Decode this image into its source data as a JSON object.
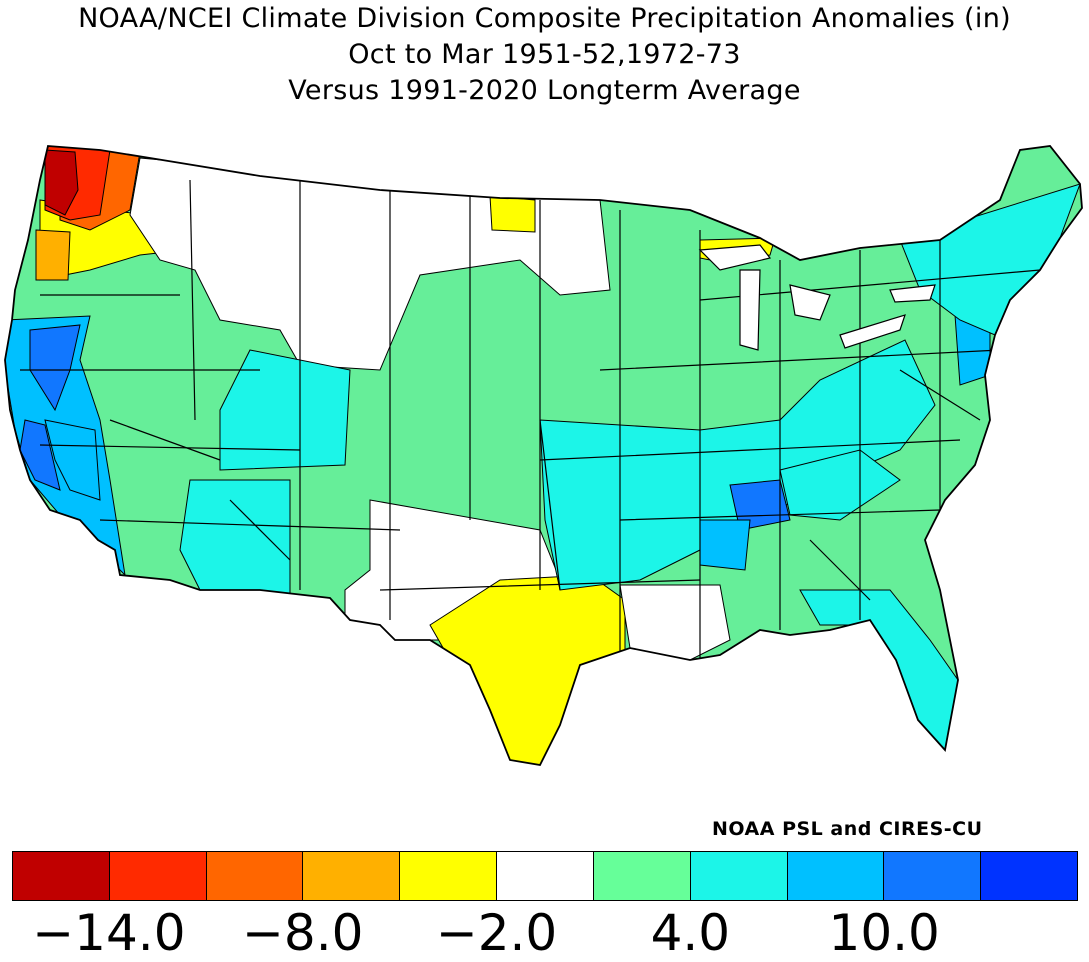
{
  "header": {
    "title_line1": "NOAA/NCEI Climate Division Composite Precipitation Anomalies (in)",
    "title_line2": "Oct to Mar  1951-52,1972-73",
    "title_line3": "Versus 1991-2020 Longterm Average"
  },
  "credit": "NOAA PSL and CIRES-CU",
  "legend": {
    "colors": [
      "#c00000",
      "#ff2a00",
      "#ff6600",
      "#ffb000",
      "#ffff00",
      "#ffffff",
      "#66ff99",
      "#1cf5e8",
      "#00c0ff",
      "#1177ff",
      "#0033ff"
    ],
    "tick_labels": [
      "−14.0",
      "−8.0",
      "−2.0",
      "4.0",
      "10.0"
    ]
  },
  "map": {
    "land_fill": "#66ee99",
    "regions": [
      {
        "name": "washington-coast",
        "color": "#c00000"
      },
      {
        "name": "washington-puget",
        "color": "#ff2a00"
      },
      {
        "name": "washington-cascades",
        "color": "#ff6600"
      },
      {
        "name": "oregon-coast",
        "color": "#ffb000"
      },
      {
        "name": "oregon-north",
        "color": "#ffff00"
      },
      {
        "name": "idaho-north",
        "color": "#ffff00"
      },
      {
        "name": "north-dakota-east",
        "color": "#ffff00"
      },
      {
        "name": "michigan-up",
        "color": "#ffff00"
      },
      {
        "name": "texas-central",
        "color": "#ffff00"
      },
      {
        "name": "northern-plains",
        "color": "#ffffff"
      },
      {
        "name": "texas-west",
        "color": "#ffffff"
      },
      {
        "name": "louisiana-mississippi",
        "color": "#ffffff"
      },
      {
        "name": "california-coast",
        "color": "#00c0ff"
      },
      {
        "name": "california-sierra",
        "color": "#1177ff"
      },
      {
        "name": "arizona-south",
        "color": "#1cf5e8"
      },
      {
        "name": "utah-colorado",
        "color": "#1cf5e8"
      },
      {
        "name": "mid-mississippi",
        "color": "#1cf5e8"
      },
      {
        "name": "tennessee-west",
        "color": "#1177ff"
      },
      {
        "name": "mississippi-north",
        "color": "#00c0ff"
      },
      {
        "name": "appalachians",
        "color": "#1cf5e8"
      },
      {
        "name": "florida-georgia",
        "color": "#1cf5e8"
      },
      {
        "name": "new-jersey",
        "color": "#00c0ff"
      },
      {
        "name": "northeast",
        "color": "#1cf5e8"
      }
    ]
  }
}
